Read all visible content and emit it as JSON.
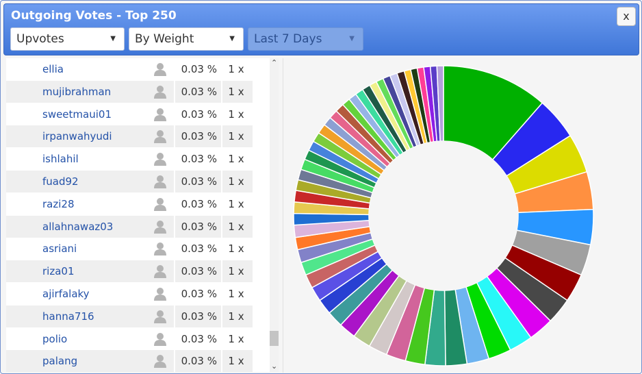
{
  "window": {
    "title": "Outgoing Votes - Top 250",
    "close_label": "x"
  },
  "filters": {
    "vote_type": "Upvotes",
    "sort_by": "By Weight",
    "period": "Last 7 Days"
  },
  "icons": {
    "user": "user-silhouette-icon",
    "caret": "caret-down-icon",
    "scroll_up": "chevron-up-icon",
    "scroll_down": "chevron-down-icon"
  },
  "rows": [
    {
      "name": "ellia",
      "percent": "0.03 %",
      "count": "1 x"
    },
    {
      "name": "mujibrahman",
      "percent": "0.03 %",
      "count": "1 x"
    },
    {
      "name": "sweetmaui01",
      "percent": "0.03 %",
      "count": "1 x"
    },
    {
      "name": "irpanwahyudi",
      "percent": "0.03 %",
      "count": "1 x"
    },
    {
      "name": "ishlahil",
      "percent": "0.03 %",
      "count": "1 x"
    },
    {
      "name": "fuad92",
      "percent": "0.03 %",
      "count": "1 x"
    },
    {
      "name": "razi28",
      "percent": "0.03 %",
      "count": "1 x"
    },
    {
      "name": "allahnawaz03",
      "percent": "0.03 %",
      "count": "1 x"
    },
    {
      "name": "asriani",
      "percent": "0.03 %",
      "count": "1 x"
    },
    {
      "name": "riza01",
      "percent": "0.03 %",
      "count": "1 x"
    },
    {
      "name": "ajirfalaky",
      "percent": "0.03 %",
      "count": "1 x"
    },
    {
      "name": "hanna716",
      "percent": "0.03 %",
      "count": "1 x"
    },
    {
      "name": "polio",
      "percent": "0.03 %",
      "count": "1 x"
    },
    {
      "name": "palang",
      "percent": "0.03 %",
      "count": "1 x"
    }
  ],
  "chart_data": {
    "type": "pie",
    "donut": true,
    "slice_values_percent": [
      13.0,
      5.2,
      4.8,
      4.6,
      4.3,
      3.8,
      3.5,
      3.2,
      3.1,
      2.9,
      2.8,
      2.7,
      2.6,
      2.5,
      2.4,
      2.4,
      2.3,
      2.2,
      2.1,
      2.0,
      1.9,
      1.8,
      1.7,
      1.6,
      1.6,
      1.5,
      1.5,
      1.4,
      1.4,
      1.4,
      1.3,
      1.3,
      1.3,
      1.2,
      1.2,
      1.2,
      1.2,
      1.1,
      1.1,
      1.1,
      1.0,
      1.0,
      1.0,
      1.0,
      0.9,
      0.9,
      0.9,
      0.9,
      0.9,
      0.8,
      0.8,
      0.8,
      0.8,
      0.8,
      0.8
    ],
    "slice_colors": [
      "#00b000",
      "#2828f0",
      "#dcdc00",
      "#ff9040",
      "#2896ff",
      "#a0a0a0",
      "#960000",
      "#484848",
      "#dc00f0",
      "#28f8f8",
      "#00dc00",
      "#6eb4f0",
      "#1e8c64",
      "#32aa8c",
      "#46c81e",
      "#d2649a",
      "#d2c8c8",
      "#b4c88c",
      "#aa14c8",
      "#3c9b9b",
      "#2840d2",
      "#5a50e6",
      "#c86464",
      "#50e68c",
      "#8282c8",
      "#ff7828",
      "#dcb4dc",
      "#1e6ed2",
      "#e6c850",
      "#c82828",
      "#aaaa28",
      "#6e7896",
      "#46dc64",
      "#1e9650",
      "#4682dc",
      "#7ccc3c",
      "#f0a028",
      "#8ca0d2",
      "#e6648c",
      "#b45a3c",
      "#64d23c",
      "#96b4e6",
      "#3cdca0",
      "#1e5a46",
      "#f0f08c",
      "#64dc5a",
      "#46469b",
      "#c8c8f0",
      "#3c1e1e",
      "#ffc832",
      "#1e3c14",
      "#ff3c96",
      "#8c1ee6",
      "#5a3cc8",
      "#b4a0dc"
    ]
  }
}
